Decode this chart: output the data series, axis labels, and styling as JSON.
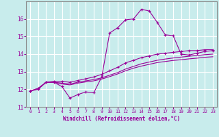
{
  "xlabel": "Windchill (Refroidissement éolien,°C)",
  "background_color": "#c8ecec",
  "grid_color": "#b8d8d8",
  "line_color": "#990099",
  "x_values": [
    0,
    1,
    2,
    3,
    4,
    5,
    6,
    7,
    8,
    9,
    10,
    11,
    12,
    13,
    14,
    15,
    16,
    17,
    18,
    19,
    20,
    21,
    22,
    23
  ],
  "series1": [
    11.9,
    12.0,
    12.4,
    12.4,
    12.15,
    11.5,
    11.7,
    11.85,
    11.8,
    12.7,
    15.2,
    15.5,
    15.95,
    16.0,
    16.55,
    16.45,
    15.8,
    15.1,
    15.05,
    14.0,
    13.95,
    14.05,
    14.15,
    14.2
  ],
  "series2": [
    11.9,
    12.05,
    12.4,
    12.45,
    12.45,
    12.4,
    12.5,
    12.6,
    12.7,
    12.85,
    13.05,
    13.25,
    13.5,
    13.65,
    13.8,
    13.9,
    14.0,
    14.05,
    14.1,
    14.15,
    14.2,
    14.2,
    14.25,
    14.25
  ],
  "series3": [
    11.9,
    12.05,
    12.4,
    12.4,
    12.35,
    12.3,
    12.4,
    12.48,
    12.55,
    12.65,
    12.8,
    12.95,
    13.15,
    13.3,
    13.45,
    13.55,
    13.65,
    13.72,
    13.78,
    13.83,
    13.88,
    13.92,
    13.97,
    14.0
  ],
  "series4": [
    11.9,
    12.05,
    12.4,
    12.4,
    12.3,
    12.25,
    12.35,
    12.42,
    12.48,
    12.58,
    12.72,
    12.87,
    13.05,
    13.2,
    13.32,
    13.42,
    13.52,
    13.58,
    13.64,
    13.68,
    13.73,
    13.77,
    13.82,
    13.85
  ],
  "ylim": [
    11.0,
    17.0
  ],
  "xlim": [
    -0.5,
    23.5
  ],
  "yticks": [
    11,
    12,
    13,
    14,
    15,
    16
  ],
  "xticks": [
    0,
    1,
    2,
    3,
    4,
    5,
    6,
    7,
    8,
    9,
    10,
    11,
    12,
    13,
    14,
    15,
    16,
    17,
    18,
    19,
    20,
    21,
    22,
    23
  ]
}
